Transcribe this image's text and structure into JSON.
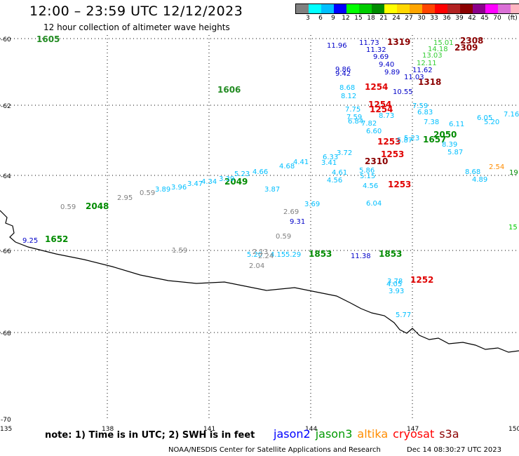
{
  "header": {
    "title": "12:00  –  23:59 UTC 12/12/2023",
    "subtitle": "12 hour collection of altimeter wave heights"
  },
  "legend": {
    "colors": [
      "#808080",
      "#00ffff",
      "#00bfff",
      "#0000ff",
      "#00ff00",
      "#00cd00",
      "#008b00",
      "#ffff00",
      "#ffd700",
      "#ffa500",
      "#ff4500",
      "#ff0000",
      "#b22222",
      "#8b0000",
      "#8b008b",
      "#ff00ff",
      "#da70d6",
      "#ffb6c1",
      "#000000"
    ],
    "labels": [
      "3",
      "6",
      "9",
      "12",
      "15",
      "18",
      "21",
      "24",
      "27",
      "30",
      "33",
      "36",
      "39",
      "42",
      "45",
      "70",
      "(ft)"
    ]
  },
  "axes": {
    "lat_labels": [
      "-60",
      "-62",
      "-64",
      "-66",
      "-68",
      "-70"
    ],
    "lon_labels": [
      "135",
      "138",
      "141",
      "144",
      "147",
      "150"
    ]
  },
  "observations": [
    {
      "t": "1605",
      "c": "#228b22"
    },
    {
      "t": "1606",
      "c": "#228b22"
    },
    {
      "t": "1657",
      "c": "#008b00"
    },
    {
      "t": "1652",
      "c": "#008b00"
    },
    {
      "t": "2049",
      "c": "#008b00"
    },
    {
      "t": "2048",
      "c": "#008b00"
    },
    {
      "t": "2050",
      "c": "#008b00"
    },
    {
      "t": "1853",
      "c": "#008b00"
    },
    {
      "t": "1853",
      "c": "#008b00"
    },
    {
      "t": "1319",
      "c": "#8b0000"
    },
    {
      "t": "2308",
      "c": "#8b0000"
    },
    {
      "t": "2309",
      "c": "#8b0000"
    },
    {
      "t": "1318",
      "c": "#8b0000"
    },
    {
      "t": "1254",
      "c": "#e00000"
    },
    {
      "t": "1254",
      "c": "#e00000"
    },
    {
      "t": "1254",
      "c": "#e00000"
    },
    {
      "t": "1253",
      "c": "#e00000"
    },
    {
      "t": "1253",
      "c": "#e00000"
    },
    {
      "t": "1253",
      "c": "#e00000"
    },
    {
      "t": "1252",
      "c": "#e00000"
    },
    {
      "t": "2310",
      "c": "#8b0000"
    },
    {
      "t": "11.73",
      "c": "#0000c8"
    },
    {
      "t": "11.32",
      "c": "#0000c8"
    },
    {
      "t": "11.96",
      "c": "#0000c8"
    },
    {
      "t": "9.69",
      "c": "#0000c8"
    },
    {
      "t": "9.40",
      "c": "#0000c8"
    },
    {
      "t": "9.89",
      "c": "#0000c8"
    },
    {
      "t": "9.86",
      "c": "#0000c8"
    },
    {
      "t": "9.42",
      "c": "#0000c8"
    },
    {
      "t": "11.62",
      "c": "#0000c8"
    },
    {
      "t": "11.03",
      "c": "#0000c8"
    },
    {
      "t": "10.55",
      "c": "#0000c8"
    },
    {
      "t": "9.31",
      "c": "#0000c8"
    },
    {
      "t": "11.38",
      "c": "#0000c8"
    },
    {
      "t": "9.25",
      "c": "#0000c8"
    },
    {
      "t": "15.01",
      "c": "#32cd32"
    },
    {
      "t": "14.18",
      "c": "#32cd32"
    },
    {
      "t": "13.03",
      "c": "#32cd32"
    },
    {
      "t": "12.11",
      "c": "#32cd32"
    },
    {
      "t": "8.68",
      "c": "#00bfff"
    },
    {
      "t": "8.12",
      "c": "#00bfff"
    },
    {
      "t": "7.75",
      "c": "#00bfff"
    },
    {
      "t": "7.59",
      "c": "#00bfff"
    },
    {
      "t": "6.84",
      "c": "#00bfff"
    },
    {
      "t": "7.82",
      "c": "#00bfff"
    },
    {
      "t": "8.73",
      "c": "#00bfff"
    },
    {
      "t": "6.60",
      "c": "#00bfff"
    },
    {
      "t": "6.83",
      "c": "#00bfff"
    },
    {
      "t": "7.59",
      "c": "#00bfff"
    },
    {
      "t": "7.38",
      "c": "#00bfff"
    },
    {
      "t": "8.39",
      "c": "#00bfff"
    },
    {
      "t": "7.16",
      "c": "#00bfff"
    },
    {
      "t": "6.05",
      "c": "#00bfff"
    },
    {
      "t": "5.20",
      "c": "#00bfff"
    },
    {
      "t": "6.11",
      "c": "#00bfff"
    },
    {
      "t": "5.87",
      "c": "#00bfff"
    },
    {
      "t": "6.33",
      "c": "#00bfff"
    },
    {
      "t": "5.23",
      "c": "#00bfff"
    },
    {
      "t": "5.87",
      "c": "#00bfff"
    },
    {
      "t": "3.72",
      "c": "#00bfff"
    },
    {
      "t": "3.41",
      "c": "#00bfff"
    },
    {
      "t": "4.61",
      "c": "#00bfff"
    },
    {
      "t": "4.56",
      "c": "#00bfff"
    },
    {
      "t": "5.86",
      "c": "#00bfff"
    },
    {
      "t": "5.15",
      "c": "#00bfff"
    },
    {
      "t": "4.56",
      "c": "#00bfff"
    },
    {
      "t": "6.04",
      "c": "#00bfff"
    },
    {
      "t": "3.69",
      "c": "#00bfff"
    },
    {
      "t": "4.89",
      "c": "#00bfff"
    },
    {
      "t": "8.68",
      "c": "#00bfff"
    },
    {
      "t": "5.29",
      "c": "#00bfff"
    },
    {
      "t": "3.78",
      "c": "#00bfff"
    },
    {
      "t": "4.05",
      "c": "#00bfff"
    },
    {
      "t": "3.93",
      "c": "#00bfff"
    },
    {
      "t": "5.77",
      "c": "#00bfff"
    },
    {
      "t": "5.23",
      "c": "#00bfff"
    },
    {
      "t": "4.66",
      "c": "#00bfff"
    },
    {
      "t": "4.68",
      "c": "#00bfff"
    },
    {
      "t": "3.87",
      "c": "#00bfff"
    },
    {
      "t": "4.41",
      "c": "#00bfff"
    },
    {
      "t": "3.89",
      "c": "#00bfff"
    },
    {
      "t": "3.96",
      "c": "#00bfff"
    },
    {
      "t": "3.47",
      "c": "#00bfff"
    },
    {
      "t": "4.34",
      "c": "#00bfff"
    },
    {
      "t": "3.39",
      "c": "#00bfff"
    },
    {
      "t": "4.15",
      "c": "#00bfff"
    },
    {
      "t": "5.20",
      "c": "#00bfff"
    },
    {
      "t": "2.95",
      "c": "#808080"
    },
    {
      "t": "0.59",
      "c": "#808080"
    },
    {
      "t": "0.59",
      "c": "#808080"
    },
    {
      "t": "2.69",
      "c": "#808080"
    },
    {
      "t": "0.59",
      "c": "#808080"
    },
    {
      "t": "2.24",
      "c": "#808080"
    },
    {
      "t": "2.04",
      "c": "#808080"
    },
    {
      "t": "2.13",
      "c": "#808080"
    },
    {
      "t": "1.59",
      "c": "#808080"
    },
    {
      "t": "2.54",
      "c": "#ff8c00"
    },
    {
      "t": "19",
      "c": "#008b00"
    },
    {
      "t": "15",
      "c": "#00cd00"
    }
  ],
  "notes": {
    "text": "note: 1) Time is in UTC; 2) SWH is in feet"
  },
  "satellites": [
    {
      "name": "jason2",
      "color": "#0000ff"
    },
    {
      "name": "jason3",
      "color": "#009900"
    },
    {
      "name": "altika",
      "color": "#ff8c00"
    },
    {
      "name": "cryosat",
      "color": "#ff0000"
    },
    {
      "name": "s3a",
      "color": "#8b0000"
    }
  ],
  "footer": {
    "credit": "NOAA/NESDIS Center for Satellite Applications and Research",
    "timestamp": "Dec 14 08:30:27 UTC 2023"
  }
}
